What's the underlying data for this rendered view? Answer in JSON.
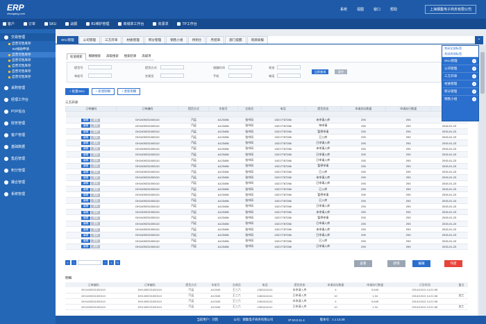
{
  "app": {
    "logo_text": "ERP",
    "logo_sub": "zhaogang.com"
  },
  "toplinks": [
    "系统",
    "视图",
    "窗口",
    "帮助"
  ],
  "company": "上海钢集电子商务有限公司",
  "navbar": [
    "客户",
    "订单",
    "SKU",
    "战报",
    "B1维护管理",
    "商城单工作台",
    "资源求",
    "TP工作台"
  ],
  "sidebar": {
    "groups": [
      {
        "label": "交易管理",
        "active": true
      },
      {
        "label": "采购管理"
      },
      {
        "label": "经理工作台"
      },
      {
        "label": "POP后台"
      },
      {
        "label": "财务管理"
      },
      {
        "label": "客户管理"
      },
      {
        "label": "基础数据"
      },
      {
        "label": "售后管理"
      },
      {
        "label": "积分管理"
      },
      {
        "label": "撮合管理"
      },
      {
        "label": "系统管理"
      }
    ],
    "subs": [
      "自营可售库存",
      "B2线助申请",
      "自营可售库存",
      "自营可售库存",
      "自营可售库存",
      "自营可售库存",
      "自营可售库存"
    ]
  },
  "tabs": [
    "SKU管理",
    "公司管理",
    "三方开单",
    "材质管理",
    "积分管理",
    "销售小组",
    "待到仓",
    "月结单",
    "部门提醒",
    "资源采报"
  ],
  "subtabs": [
    "标准搜索",
    "模糊搜索",
    "高级搜索",
    "搜索结果",
    "高级项"
  ],
  "form": {
    "labels": [
      "提货号",
      "提货方式",
      "线路时间",
      "状态",
      "车船号",
      "交易员",
      "手机",
      "电话"
    ],
    "search_btn": "立即查询",
    "reset_btn": "清空"
  },
  "actions": [
    "+ 批量SKU",
    "+ 新增明细",
    "+ 更新明细"
  ],
  "grid": {
    "group_label": "三方开单",
    "headers": [
      "订单编码",
      "订单编码",
      "提货方式",
      "车船号",
      "交易员",
      "电话",
      "提货状态",
      "申请实际数量",
      "申请执行数量",
      "订货时间"
    ],
    "op_edit": "编辑",
    "op_copy": "复制",
    "rows": [
      [
        "DH1409231000110",
        "汽运",
        "A123456",
        "张书风",
        "15217787266",
        "未申请入库",
        "293",
        "293",
        "2015-01-23",
        "red"
      ],
      [
        "DH1409231000110",
        "汽运",
        "A123456",
        "张书风",
        "15217787266",
        "待申请",
        "293",
        "293",
        "2015-01-23",
        "blue"
      ],
      [
        "DH1409231000110",
        "汽运",
        "A123456",
        "张书风",
        "15217787266",
        "暂停申请",
        "293",
        "293",
        "2015-01-23",
        "blue"
      ],
      [
        "DH1409231000110",
        "汽运",
        "A123456",
        "张书风",
        "15217787266",
        "已入库",
        "293",
        "293",
        "2015-01-23",
        "plain"
      ],
      [
        "DH1409231000110",
        "汽运",
        "A123456",
        "张书风",
        "15217787266",
        "已申请入库",
        "293",
        "293",
        "2015-01-23",
        "plain"
      ],
      [
        "DH1409231000110",
        "汽运",
        "A123456",
        "张书风",
        "15217787266",
        "未申请入库",
        "293",
        "293",
        "2015-01-23",
        "red"
      ],
      [
        "DH1409231000110",
        "汽运",
        "A123456",
        "张书风",
        "15217787266",
        "已申请入库",
        "293",
        "293",
        "2015-01-23",
        "plain"
      ],
      [
        "DH1409231000110",
        "汽运",
        "A123456",
        "张书风",
        "15217787266",
        "已申请入库",
        "293",
        "293",
        "2015-01-23",
        "plain"
      ],
      [
        "DH1409231000110",
        "汽运",
        "A123456",
        "张书风",
        "15217787266",
        "暂停申请",
        "293",
        "293",
        "2015-01-23",
        "blue"
      ],
      [
        "DH1409231000110",
        "汽运",
        "A123456",
        "张书风",
        "15217787266",
        "已入库",
        "293",
        "293",
        "2015-01-23",
        "plain"
      ],
      [
        "DH1409231000110",
        "汽运",
        "A123456",
        "张书风",
        "15217787266",
        "未申请入库",
        "293",
        "293",
        "2015-01-23",
        "red"
      ],
      [
        "DH1409231000110",
        "汽运",
        "A123456",
        "张书风",
        "15217787266",
        "已申请入库",
        "293",
        "293",
        "2015-01-23",
        "plain"
      ],
      [
        "DH1409231000110",
        "汽运",
        "A123456",
        "张书风",
        "15217787266",
        "已入库",
        "293",
        "293",
        "2015-01-23",
        "plain"
      ],
      [
        "DH1409231000110",
        "汽运",
        "A123456",
        "张书风",
        "15217787266",
        "暂停申请",
        "293",
        "293",
        "2015-01-23",
        "blue"
      ],
      [
        "DH1409231000110",
        "汽运",
        "A123456",
        "张书风",
        "15217787266",
        "已入库",
        "293",
        "293",
        "2015-01-23",
        "plain"
      ],
      [
        "DH1409231000110",
        "汽运",
        "A123456",
        "张书风",
        "15217787266",
        "已申请入库",
        "293",
        "293",
        "2015-01-23",
        "plain"
      ],
      [
        "DH1409231000110",
        "汽运",
        "A123456",
        "张书风",
        "15217787266",
        "未申请入库",
        "293",
        "293",
        "2015-01-23",
        "red"
      ],
      [
        "DH1409231000110",
        "汽运",
        "A123456",
        "张书风",
        "15217787266",
        "暂停申请",
        "293",
        "293",
        "2015-01-23",
        "blue"
      ],
      [
        "DH1409231000110",
        "汽运",
        "A123456",
        "张书风",
        "15217787266",
        "已申请入库",
        "293",
        "293",
        "2015-01-23",
        "plain"
      ],
      [
        "DH1409231000110",
        "汽运",
        "A123456",
        "张书风",
        "15217787266",
        "未申请入库",
        "293",
        "293",
        "2015-01-23",
        "red"
      ],
      [
        "DH1409231000110",
        "汽运",
        "A123456",
        "张书风",
        "15217787266",
        "已申请入库",
        "293",
        "293",
        "2015-01-23",
        "plain"
      ],
      [
        "DH1409231000110",
        "汽运",
        "A123456",
        "张书风",
        "15217787266",
        "已入库",
        "293",
        "293",
        "2015-01-23",
        "plain"
      ],
      [
        "DH1409231000110",
        "汽运",
        "A123456",
        "张书风",
        "15217787266",
        "已申请入库",
        "293",
        "293",
        "2015-01-23",
        "plain"
      ]
    ]
  },
  "bottom_buttons": [
    {
      "label": "查看",
      "color": "#9aa6b4"
    },
    {
      "label": "新增",
      "color": "#9aa6b4"
    },
    {
      "label": "编辑",
      "color": "#2a6fce"
    },
    {
      "label": "作废",
      "color": "#e8433a"
    }
  ],
  "detail": {
    "title": "明细",
    "headers": [
      "订单编码",
      "订单编码",
      "提货方式",
      "车船号",
      "交易员",
      "电话",
      "提货状态",
      "申请实际数量",
      "申请执行数量",
      "订货时间",
      "备注"
    ],
    "rows": [
      [
        "DH1409231000110",
        "DH1409231000110",
        "汽运",
        "A12345",
        "王三六",
        "13811111111",
        "未申请入库",
        "4",
        "5.645",
        "2014/10/13 14:21:58",
        ""
      ],
      [
        "DH1409231000110",
        "DH1409231000110",
        "汽运",
        "A12345",
        "王三六",
        "13811111111",
        "已申请入库",
        "10",
        "1.34",
        "2014/10/13 14:21:58",
        "加工"
      ],
      [
        "DH1409231000110",
        "DH1409231000110",
        "汽运",
        "A12345",
        "王三六",
        "13811111111",
        "未申请入库",
        "4",
        "5.645",
        "2014/10/13 14:21:58",
        ""
      ],
      [
        "DH1409231000110",
        "DH1409231000110",
        "汽运",
        "A12345",
        "王三六",
        "13811111111",
        "已申请入库",
        "10",
        "1.34",
        "2014/10/13 14:21:58",
        "加工"
      ]
    ]
  },
  "panel": {
    "links": [
      "关闭全部标签",
      "关闭其他标签"
    ],
    "items": [
      "SKU管理",
      "公司管理",
      "三方开单",
      "材质管理",
      "积分管理",
      "销售小组"
    ]
  },
  "footer": [
    "当前用户：刘凯",
    "公司：钢集电子商务有限公司",
    "IP:10.0.11.4",
    "版本号：1.1.13.28"
  ]
}
